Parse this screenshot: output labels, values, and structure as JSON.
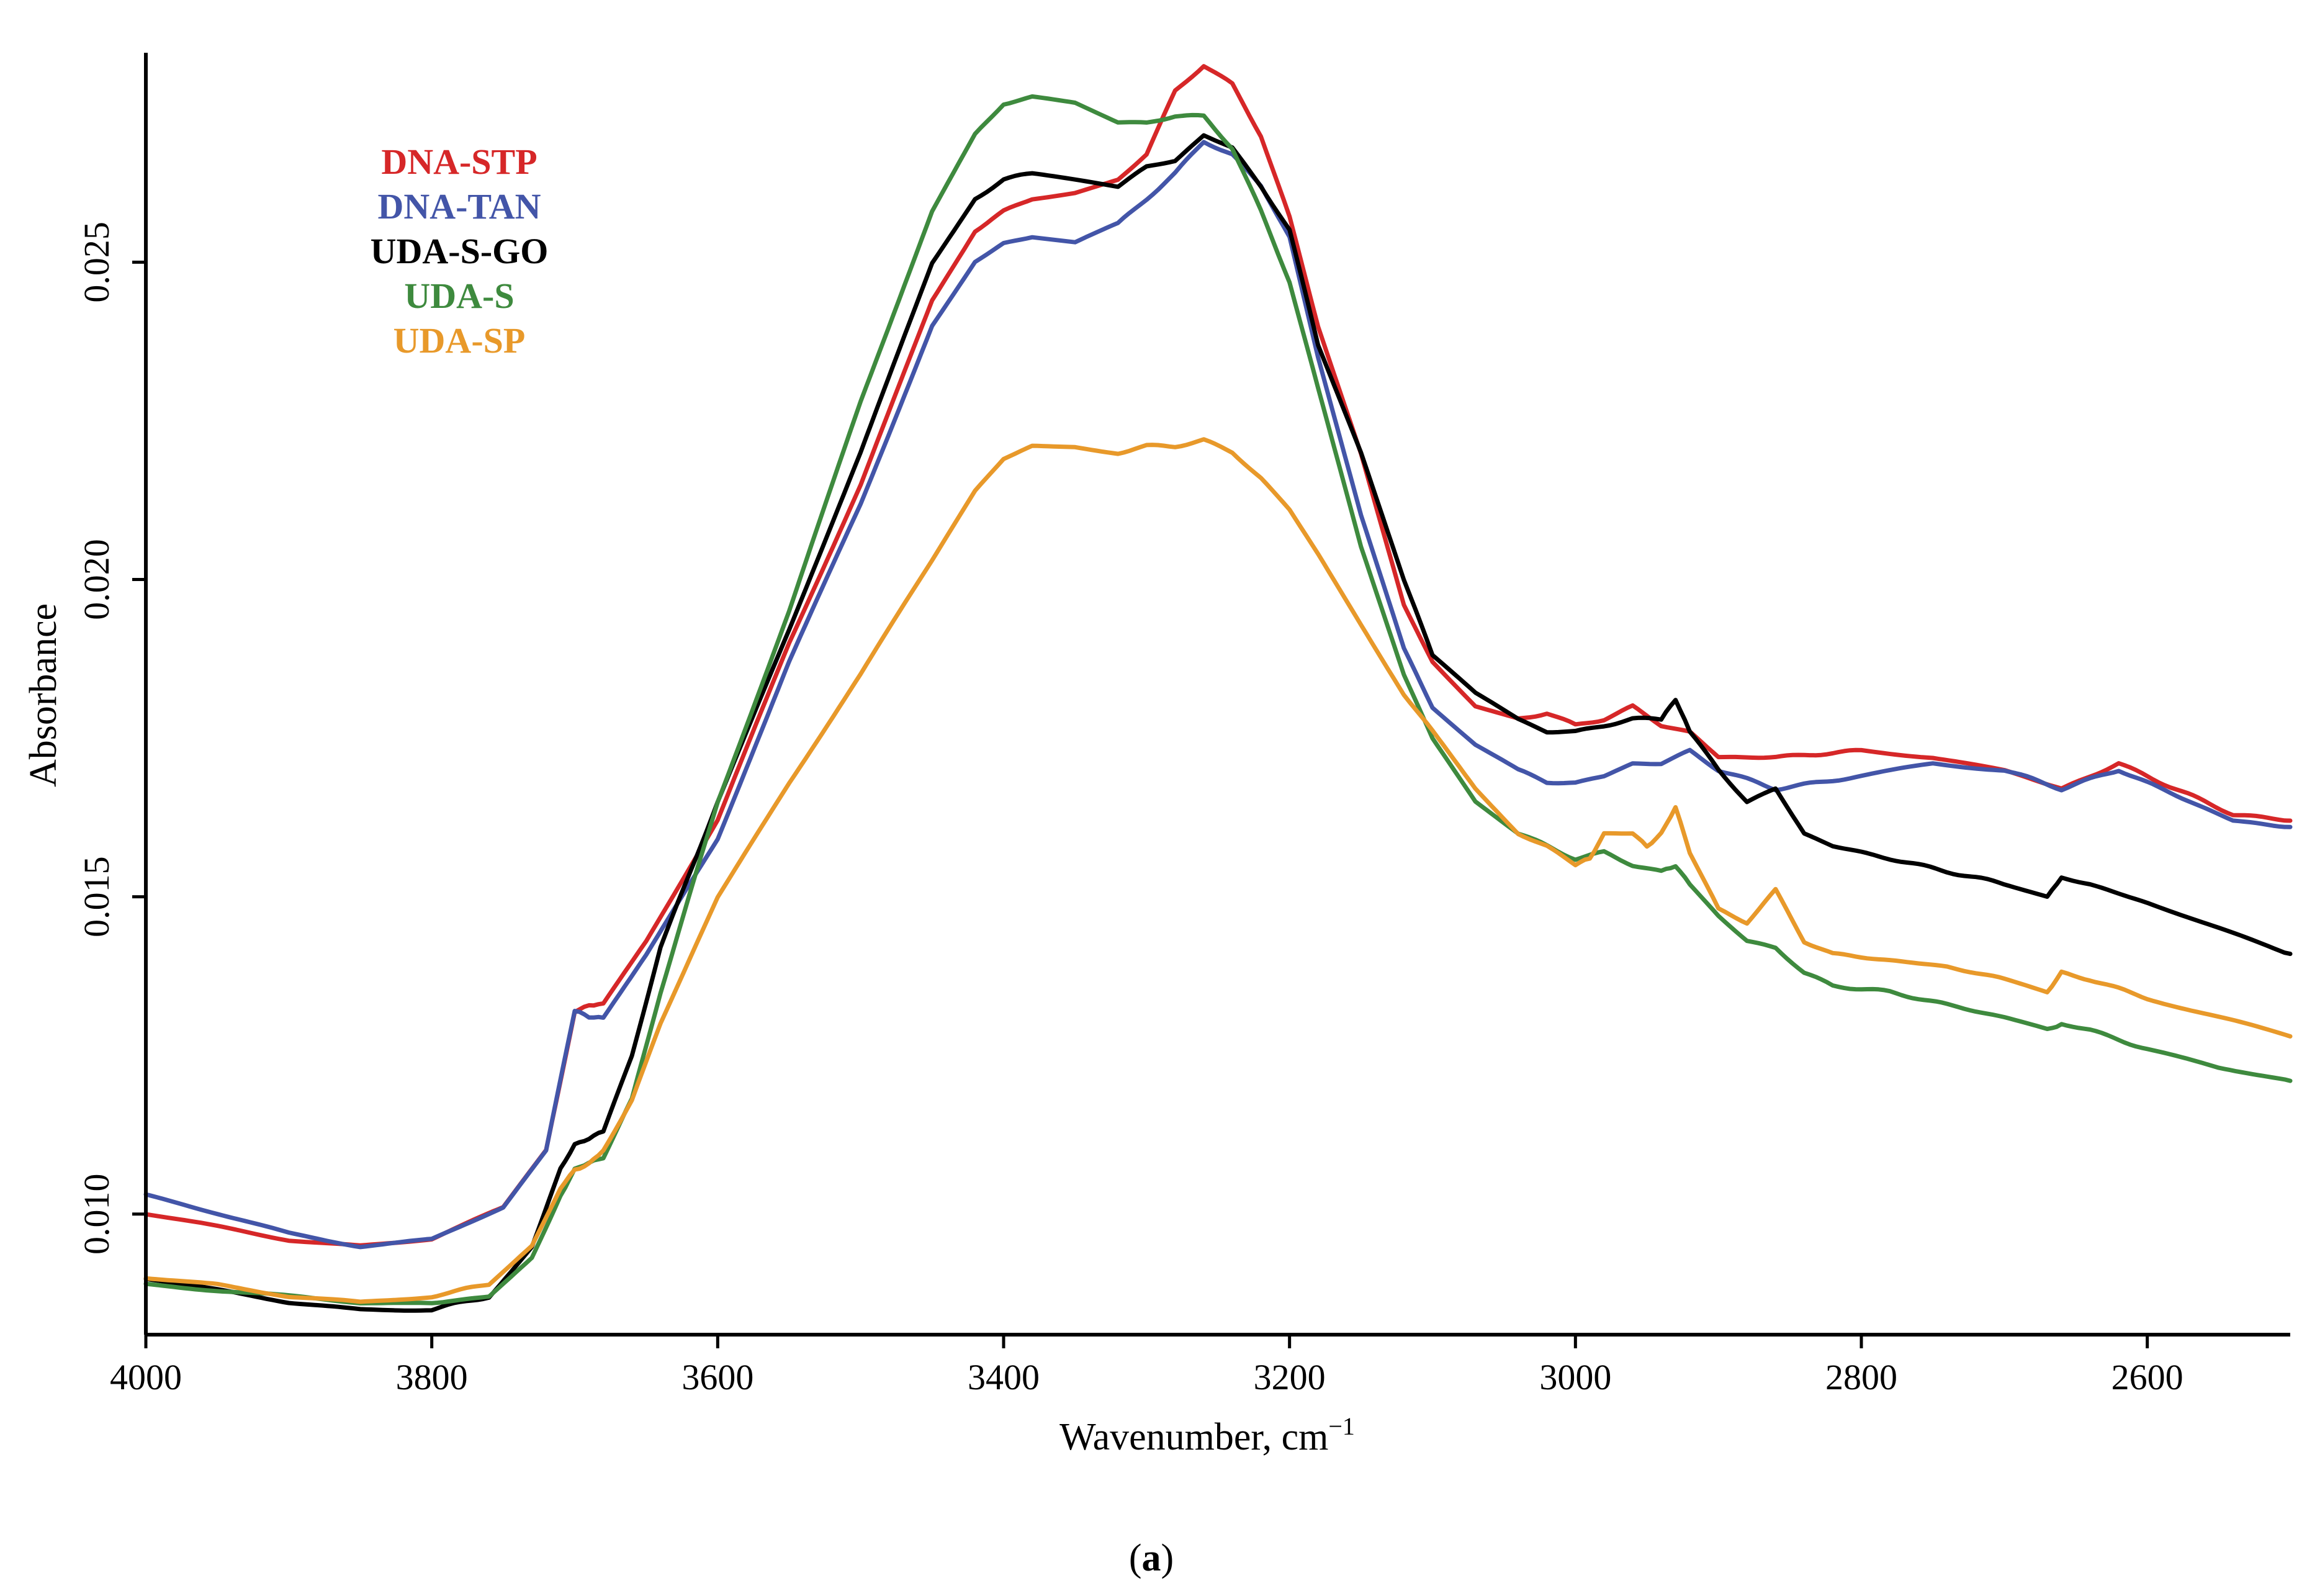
{
  "chart_data": {
    "type": "line",
    "title": "",
    "xlabel": "Wavenumber, cm",
    "xlabel_superscript": "−1",
    "ylabel": "Absorbance",
    "xlim": [
      4000,
      2500
    ],
    "ylim": [
      0.0081,
      0.0283
    ],
    "x_ticks": [
      4000,
      3800,
      3600,
      3400,
      3200,
      3000,
      2800,
      2600
    ],
    "x_tick_labels": [
      "4000",
      "3800",
      "3600",
      "3400",
      "3200",
      "3000",
      "2800",
      "2600"
    ],
    "y_ticks": [
      0.01,
      0.015,
      0.02,
      0.025
    ],
    "y_tick_labels": [
      "0.010",
      "0.015",
      "0.020",
      "0.025"
    ],
    "grid": false,
    "legend_position": "top-left",
    "caption": "(a)",
    "caption_bold_part": "a",
    "series": [
      {
        "name": "DNA-STP",
        "color": "#d62728",
        "x": [
          4000,
          3950,
          3900,
          3850,
          3800,
          3750,
          3720,
          3700,
          3690,
          3680,
          3650,
          3600,
          3550,
          3500,
          3450,
          3420,
          3400,
          3380,
          3350,
          3320,
          3300,
          3280,
          3260,
          3240,
          3220,
          3200,
          3180,
          3150,
          3120,
          3100,
          3070,
          3040,
          3020,
          3000,
          2980,
          2960,
          2940,
          2920,
          2900,
          2860,
          2800,
          2750,
          2700,
          2660,
          2620,
          2580,
          2540,
          2500
        ],
        "y": [
          0.01,
          0.0098,
          0.0096,
          0.0095,
          0.0096,
          0.0101,
          0.011,
          0.0132,
          0.0133,
          0.0133,
          0.0143,
          0.0162,
          0.019,
          0.0215,
          0.0244,
          0.0255,
          0.0258,
          0.026,
          0.0261,
          0.0263,
          0.0267,
          0.0277,
          0.0281,
          0.0278,
          0.027,
          0.0257,
          0.024,
          0.022,
          0.0196,
          0.0187,
          0.018,
          0.0178,
          0.0179,
          0.0177,
          0.0178,
          0.018,
          0.0177,
          0.0176,
          0.0172,
          0.0172,
          0.0173,
          0.0172,
          0.017,
          0.0167,
          0.0171,
          0.0167,
          0.0163,
          0.0162
        ]
      },
      {
        "name": "DNA-TAN",
        "color": "#4355a8",
        "x": [
          4000,
          3950,
          3900,
          3850,
          3800,
          3750,
          3720,
          3700,
          3690,
          3680,
          3650,
          3600,
          3550,
          3500,
          3450,
          3420,
          3400,
          3380,
          3350,
          3320,
          3300,
          3280,
          3260,
          3240,
          3220,
          3200,
          3180,
          3150,
          3120,
          3100,
          3070,
          3040,
          3020,
          3000,
          2980,
          2960,
          2940,
          2920,
          2900,
          2860,
          2800,
          2750,
          2700,
          2660,
          2620,
          2580,
          2540,
          2500
        ],
        "y": [
          0.0103,
          0.01,
          0.0097,
          0.0095,
          0.0096,
          0.0101,
          0.011,
          0.0132,
          0.0131,
          0.0131,
          0.0141,
          0.0159,
          0.0187,
          0.0212,
          0.024,
          0.025,
          0.0253,
          0.0254,
          0.0253,
          0.0256,
          0.026,
          0.0264,
          0.0269,
          0.0267,
          0.0262,
          0.0254,
          0.0235,
          0.021,
          0.0189,
          0.018,
          0.0174,
          0.017,
          0.0168,
          0.0168,
          0.0169,
          0.0171,
          0.0171,
          0.0173,
          0.017,
          0.0167,
          0.0169,
          0.0171,
          0.017,
          0.0167,
          0.017,
          0.0166,
          0.0162,
          0.0161
        ]
      },
      {
        "name": "UDA-S-GO",
        "color": "#000000",
        "x": [
          4000,
          3950,
          3900,
          3850,
          3800,
          3760,
          3730,
          3710,
          3700,
          3690,
          3680,
          3660,
          3640,
          3600,
          3550,
          3500,
          3450,
          3420,
          3400,
          3380,
          3350,
          3320,
          3300,
          3280,
          3260,
          3240,
          3220,
          3200,
          3180,
          3150,
          3120,
          3100,
          3070,
          3040,
          3020,
          3000,
          2980,
          2960,
          2940,
          2930,
          2920,
          2900,
          2880,
          2860,
          2840,
          2820,
          2780,
          2740,
          2700,
          2670,
          2660,
          2640,
          2600,
          2550,
          2500
        ],
        "y": [
          0.009,
          0.0088,
          0.0086,
          0.0085,
          0.0085,
          0.0087,
          0.0095,
          0.0107,
          0.0111,
          0.0112,
          0.0113,
          0.0125,
          0.0142,
          0.0165,
          0.0192,
          0.022,
          0.025,
          0.026,
          0.0263,
          0.0264,
          0.0263,
          0.0262,
          0.0265,
          0.0266,
          0.027,
          0.0268,
          0.0262,
          0.0255,
          0.0237,
          0.022,
          0.02,
          0.0188,
          0.0182,
          0.0178,
          0.0176,
          0.0176,
          0.0177,
          0.0178,
          0.0178,
          0.0181,
          0.0176,
          0.017,
          0.0165,
          0.0167,
          0.016,
          0.0158,
          0.0156,
          0.0154,
          0.0152,
          0.015,
          0.0153,
          0.0152,
          0.0149,
          0.0145,
          0.0141
        ]
      },
      {
        "name": "UDA-S",
        "color": "#3e8a3e",
        "x": [
          4000,
          3950,
          3900,
          3850,
          3800,
          3760,
          3730,
          3710,
          3700,
          3690,
          3680,
          3660,
          3640,
          3600,
          3550,
          3500,
          3450,
          3420,
          3400,
          3380,
          3350,
          3320,
          3300,
          3280,
          3260,
          3240,
          3220,
          3200,
          3180,
          3150,
          3120,
          3100,
          3070,
          3040,
          3020,
          3000,
          2980,
          2960,
          2940,
          2930,
          2920,
          2900,
          2880,
          2860,
          2840,
          2820,
          2780,
          2740,
          2700,
          2670,
          2660,
          2640,
          2600,
          2550,
          2500
        ],
        "y": [
          0.0089,
          0.0088,
          0.0087,
          0.0086,
          0.0086,
          0.0087,
          0.0093,
          0.0103,
          0.0107,
          0.0108,
          0.0109,
          0.0118,
          0.0135,
          0.0165,
          0.0195,
          0.0228,
          0.0258,
          0.027,
          0.0275,
          0.0276,
          0.0275,
          0.0272,
          0.0272,
          0.0273,
          0.0273,
          0.0268,
          0.0258,
          0.0247,
          0.023,
          0.0205,
          0.0185,
          0.0175,
          0.0165,
          0.016,
          0.0158,
          0.0156,
          0.0157,
          0.0155,
          0.0154,
          0.0155,
          0.0152,
          0.0147,
          0.0143,
          0.0142,
          0.0138,
          0.0136,
          0.0135,
          0.0133,
          0.0131,
          0.0129,
          0.013,
          0.0129,
          0.0126,
          0.0123,
          0.0121
        ]
      },
      {
        "name": "UDA-SP",
        "color": "#e8992a",
        "x": [
          4000,
          3950,
          3900,
          3850,
          3800,
          3760,
          3730,
          3710,
          3700,
          3690,
          3680,
          3660,
          3640,
          3600,
          3550,
          3500,
          3450,
          3420,
          3400,
          3380,
          3350,
          3320,
          3300,
          3280,
          3260,
          3240,
          3220,
          3200,
          3180,
          3150,
          3120,
          3100,
          3070,
          3040,
          3020,
          3000,
          2990,
          2980,
          2960,
          2950,
          2940,
          2930,
          2920,
          2900,
          2880,
          2860,
          2840,
          2820,
          2780,
          2740,
          2700,
          2670,
          2660,
          2640,
          2600,
          2550,
          2500
        ],
        "y": [
          0.009,
          0.0089,
          0.0087,
          0.0086,
          0.0087,
          0.0089,
          0.0095,
          0.0104,
          0.0107,
          0.0108,
          0.011,
          0.0118,
          0.013,
          0.015,
          0.0168,
          0.0185,
          0.0203,
          0.0214,
          0.0219,
          0.0221,
          0.0221,
          0.022,
          0.0221,
          0.0221,
          0.0222,
          0.022,
          0.0216,
          0.0211,
          0.0204,
          0.0193,
          0.0182,
          0.0176,
          0.0167,
          0.016,
          0.0158,
          0.0155,
          0.0156,
          0.016,
          0.016,
          0.0158,
          0.016,
          0.0164,
          0.0157,
          0.0148,
          0.0146,
          0.0151,
          0.0143,
          0.0141,
          0.014,
          0.0139,
          0.0137,
          0.0135,
          0.0138,
          0.0137,
          0.0134,
          0.0131,
          0.0128
        ]
      }
    ]
  }
}
